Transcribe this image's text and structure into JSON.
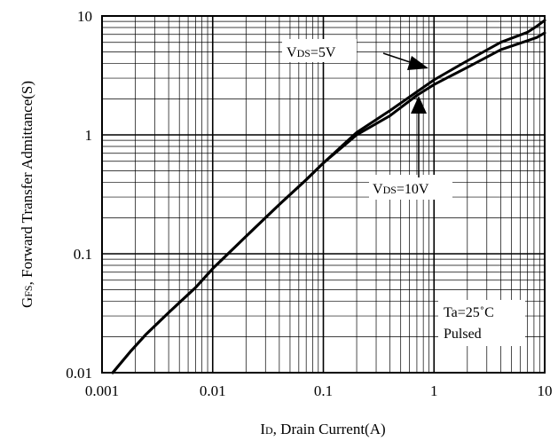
{
  "chart_data": {
    "type": "line",
    "x_scale": "log",
    "y_scale": "log",
    "xlim": [
      0.001,
      10
    ],
    "ylim": [
      0.01,
      10
    ],
    "xticks": [
      "0.001",
      "0.01",
      "0.1",
      "1",
      "10"
    ],
    "yticks": [
      "0.01",
      "0.1",
      "1",
      "10"
    ],
    "xlabel": {
      "main1": "I",
      "sub": "D",
      "main2": ", Drain Current(A)"
    },
    "ylabel": {
      "main1": "G",
      "sub": "FS",
      "main2": ", Forward Transfer Admittance(S)"
    },
    "grid": true,
    "series": [
      {
        "name": "VDS=5V",
        "points": [
          [
            0.00125,
            0.01
          ],
          [
            0.0018,
            0.015
          ],
          [
            0.0025,
            0.021
          ],
          [
            0.004,
            0.032
          ],
          [
            0.007,
            0.052
          ],
          [
            0.01,
            0.075
          ],
          [
            0.02,
            0.14
          ],
          [
            0.04,
            0.26
          ],
          [
            0.07,
            0.42
          ],
          [
            0.1,
            0.58
          ],
          [
            0.2,
            1.05
          ],
          [
            0.4,
            1.6
          ],
          [
            0.7,
            2.3
          ],
          [
            1,
            2.9
          ],
          [
            2,
            4.2
          ],
          [
            4,
            6.0
          ],
          [
            7,
            7.3
          ],
          [
            8.5,
            8.2
          ],
          [
            10,
            9.2
          ]
        ]
      },
      {
        "name": "VDS=10V",
        "points": [
          [
            0.00125,
            0.01
          ],
          [
            0.0018,
            0.015
          ],
          [
            0.0025,
            0.021
          ],
          [
            0.004,
            0.032
          ],
          [
            0.007,
            0.052
          ],
          [
            0.01,
            0.075
          ],
          [
            0.02,
            0.14
          ],
          [
            0.04,
            0.26
          ],
          [
            0.07,
            0.42
          ],
          [
            0.1,
            0.58
          ],
          [
            0.2,
            1.0
          ],
          [
            0.4,
            1.45
          ],
          [
            0.7,
            2.15
          ],
          [
            1,
            2.65
          ],
          [
            2,
            3.7
          ],
          [
            4,
            5.2
          ],
          [
            7,
            6.2
          ],
          [
            8.5,
            6.6
          ],
          [
            10,
            7.2
          ]
        ]
      }
    ],
    "annotations": {
      "vds5": {
        "main": "V",
        "sub": "DS",
        "rest": "=5V"
      },
      "vds10": {
        "main": "V",
        "sub": "DS",
        "rest": "=10V"
      },
      "conditions": [
        "Ta=25˚C",
        "Pulsed"
      ]
    }
  }
}
